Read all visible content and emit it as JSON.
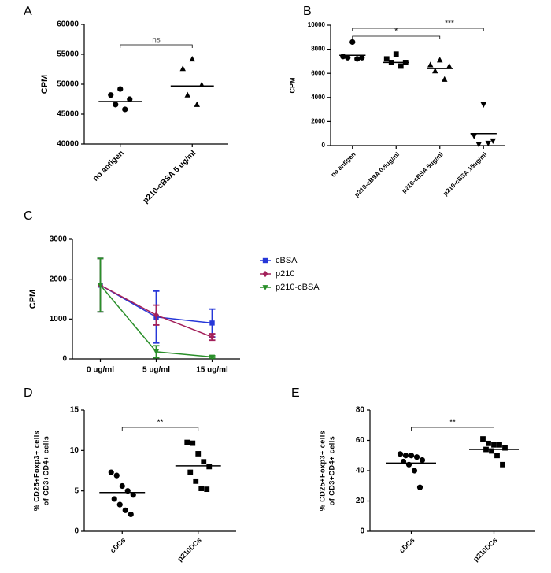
{
  "chart_data": [
    {
      "type": "dot",
      "panel_label": "A",
      "ylabel": "CPM",
      "categories": [
        "no antigen",
        "p210-cBSA 5 ug/ml"
      ],
      "values": [
        [
          49200,
          48200,
          47500,
          46600,
          45800
        ],
        [
          54200,
          52600,
          49900,
          48200,
          46600
        ]
      ],
      "means": [
        47100,
        49700
      ],
      "markers": [
        "circle",
        "triangle"
      ],
      "color": "#000000",
      "ylim": [
        40000,
        60000
      ],
      "yticks": [
        40000,
        45000,
        50000,
        55000,
        60000
      ],
      "significance": [
        {
          "between": [
            0,
            1
          ],
          "label": "ns"
        }
      ]
    },
    {
      "type": "dot",
      "panel_label": "B",
      "ylabel": "CPM",
      "categories": [
        "no antigen",
        "p210-cBSA 0.5ug/ml",
        "p210-cBSA 5ug/ml",
        "p210-cBSA 15ug/ml"
      ],
      "values": [
        [
          8600,
          7400,
          7300,
          7300,
          7200
        ],
        [
          7600,
          7200,
          6900,
          6900,
          6600
        ],
        [
          7100,
          6700,
          6600,
          6200,
          5500
        ],
        [
          3400,
          800,
          400,
          100,
          200
        ]
      ],
      "means": [
        7500,
        6900,
        6400,
        1000
      ],
      "markers": [
        "circle",
        "square",
        "triangle",
        "triangle-down"
      ],
      "color": "#000000",
      "ylim": [
        0,
        10000
      ],
      "yticks": [
        0,
        2000,
        4000,
        6000,
        8000,
        10000
      ],
      "significance": [
        {
          "between": [
            0,
            3
          ],
          "label": "***"
        },
        {
          "between": [
            0,
            2
          ],
          "label": "*"
        }
      ]
    },
    {
      "type": "line",
      "panel_label": "C",
      "ylabel": "CPM",
      "categories": [
        "0 ug/ml",
        "5 ug/ml",
        "15 ug/ml"
      ],
      "series": [
        {
          "name": "cBSA",
          "color": "#2637d8",
          "marker": "square",
          "values": [
            1850,
            1050,
            900
          ],
          "errors": [
            670,
            650,
            350
          ]
        },
        {
          "name": "p210",
          "color": "#a3205a",
          "marker": "diamond",
          "values": [
            1850,
            1100,
            550
          ],
          "errors": [
            670,
            250,
            80
          ]
        },
        {
          "name": "p210-cBSA",
          "color": "#2a8f2a",
          "marker": "triangle-down",
          "values": [
            1850,
            180,
            50
          ],
          "errors": [
            670,
            150,
            30
          ]
        }
      ],
      "ylim": [
        0,
        3000
      ],
      "yticks": [
        0,
        1000,
        2000,
        3000
      ]
    },
    {
      "type": "dot",
      "panel_label": "D",
      "ylabel": [
        "% CD25+Foxp3+ cells",
        "of CD3+CD4+ cells"
      ],
      "categories": [
        "cDCs",
        "p210DCs"
      ],
      "values": [
        [
          7.3,
          6.9,
          5.6,
          5.0,
          4.5,
          4.0,
          3.3,
          2.6,
          2.1
        ],
        [
          11.0,
          10.9,
          9.6,
          8.6,
          8.0,
          7.3,
          6.2,
          5.3,
          5.2
        ]
      ],
      "means": [
        4.8,
        8.1
      ],
      "markers": [
        "circle",
        "square"
      ],
      "color": "#000000",
      "ylim": [
        0,
        15
      ],
      "yticks": [
        0,
        5,
        10,
        15
      ],
      "significance": [
        {
          "between": [
            0,
            1
          ],
          "label": "**"
        }
      ]
    },
    {
      "type": "dot",
      "panel_label": "E",
      "ylabel": [
        "% CD25+Foxp3+ cells",
        "of CD3+CD4+ cells"
      ],
      "categories": [
        "cDCs",
        "p210DCs"
      ],
      "values": [
        [
          51,
          50,
          50,
          49,
          47,
          46,
          44,
          40,
          29
        ],
        [
          61,
          58,
          57,
          57,
          55,
          54,
          53,
          50,
          44
        ]
      ],
      "means": [
        45,
        54
      ],
      "markers": [
        "circle",
        "square"
      ],
      "color": "#000000",
      "ylim": [
        0,
        80
      ],
      "yticks": [
        0,
        20,
        40,
        60,
        80
      ],
      "significance": [
        {
          "between": [
            0,
            1
          ],
          "label": "**"
        }
      ]
    }
  ]
}
